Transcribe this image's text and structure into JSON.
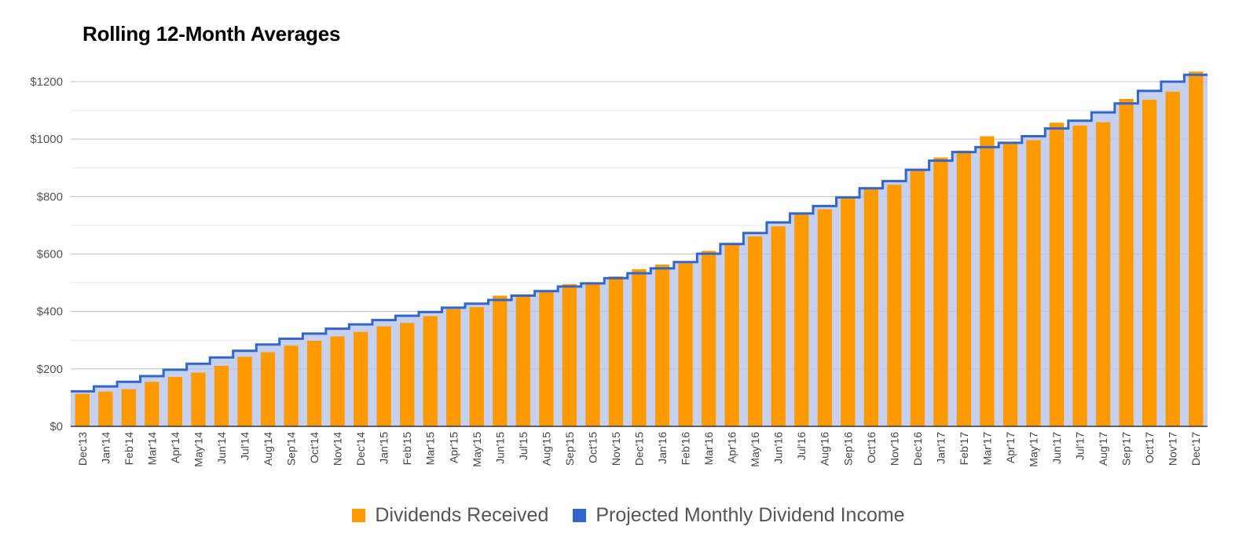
{
  "chart_data": {
    "type": "bar",
    "title": "Rolling 12-Month Averages",
    "xlabel": "",
    "ylabel": "",
    "ylim": [
      0,
      1200
    ],
    "yticks": [
      0,
      200,
      400,
      600,
      800,
      1000,
      1200
    ],
    "ytick_labels": [
      "$0",
      "$200",
      "$400",
      "$600",
      "$800",
      "$1000",
      "$1200"
    ],
    "grid": true,
    "legend_position": "bottom",
    "categories": [
      "Dec'13",
      "Jan'14",
      "Feb'14",
      "Mar'14",
      "Apr'14",
      "May'14",
      "Jun'14",
      "Jul'14",
      "Aug'14",
      "Sep'14",
      "Oct'14",
      "Nov'14",
      "Dec'14",
      "Jan'15",
      "Feb'15",
      "Mar'15",
      "Apr'15",
      "May'15",
      "Jun'15",
      "Jul'15",
      "Aug'15",
      "Sep'15",
      "Oct'15",
      "Nov'15",
      "Dec'15",
      "Jan'16",
      "Feb'16",
      "Mar'16",
      "Apr'16",
      "May'16",
      "Jun'16",
      "Jul'16",
      "Aug'16",
      "Sep'16",
      "Oct'16",
      "Nov'16",
      "Dec'16",
      "Jan'17",
      "Feb'17",
      "Mar'17",
      "Apr'17",
      "May'17",
      "Jun'17",
      "Jul'17",
      "Aug'17",
      "Sep'17",
      "Oct'17",
      "Nov'17",
      "Dec'17"
    ],
    "series": [
      {
        "name": "Dividends Received",
        "kind": "bar",
        "color": "#ff9900",
        "values": [
          113,
          121,
          129,
          155,
          172,
          187,
          211,
          242,
          258,
          281,
          298,
          313,
          329,
          348,
          360,
          384,
          408,
          415,
          455,
          452,
          474,
          495,
          495,
          522,
          547,
          563,
          568,
          611,
          633,
          661,
          696,
          737,
          756,
          796,
          830,
          841,
          892,
          936,
          960,
          1010,
          985,
          996,
          1057,
          1047,
          1059,
          1140,
          1137,
          1165,
          1235
        ]
      },
      {
        "name": "Projected Monthly Dividend Income",
        "kind": "stepped-area",
        "color": "#3366cc",
        "fill": "#c6d0ef",
        "values": [
          122,
          139,
          155,
          175,
          197,
          218,
          240,
          263,
          285,
          305,
          323,
          340,
          355,
          370,
          385,
          398,
          413,
          427,
          440,
          455,
          471,
          487,
          498,
          516,
          533,
          550,
          572,
          601,
          635,
          673,
          710,
          741,
          767,
          797,
          829,
          854,
          893,
          925,
          955,
          972,
          987,
          1010,
          1037,
          1064,
          1093,
          1124,
          1168,
          1200,
          1224
        ]
      }
    ]
  }
}
